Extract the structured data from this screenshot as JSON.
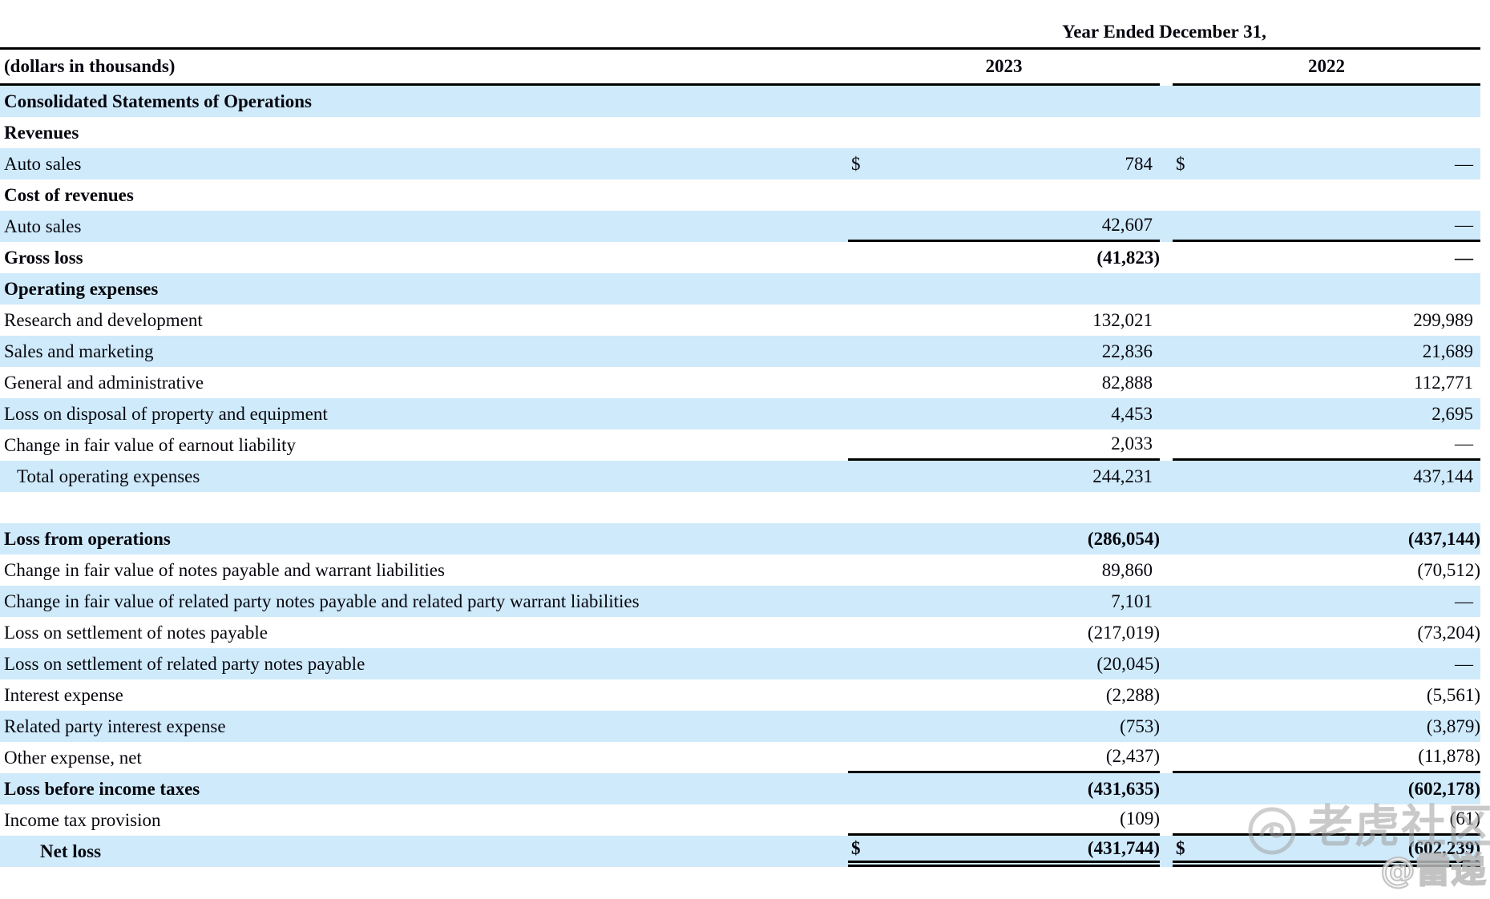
{
  "header": {
    "period_title": "Year Ended December 31,",
    "unit_label": "(dollars in thousands)",
    "columns": [
      "2023",
      "2022"
    ]
  },
  "table": {
    "rows": [
      {
        "label": "Consolidated Statements of Operations",
        "bold": true
      },
      {
        "label": "Revenues",
        "bold": true
      },
      {
        "label": "Auto sales",
        "v1": "784",
        "v2": "—",
        "d1": true,
        "d2": true
      },
      {
        "label": "Cost of revenues",
        "bold": true
      },
      {
        "label": "Auto sales",
        "v1": "42,607",
        "v2": "—",
        "rule": "single"
      },
      {
        "label": "Gross loss",
        "bold": true,
        "v1": "(41,823)",
        "v2": "—"
      },
      {
        "label": "Operating expenses",
        "bold": true
      },
      {
        "label": "Research and development",
        "v1": "132,021",
        "v2": "299,989"
      },
      {
        "label": "Sales and marketing",
        "v1": "22,836",
        "v2": "21,689"
      },
      {
        "label": "General and administrative",
        "v1": "82,888",
        "v2": "112,771"
      },
      {
        "label": "Loss on disposal of property and equipment",
        "v1": "4,453",
        "v2": "2,695"
      },
      {
        "label": "Change in fair value of earnout liability",
        "v1": "2,033",
        "v2": "—",
        "rule": "single"
      },
      {
        "label": "Total operating expenses",
        "indent": 1,
        "v1": "244,231",
        "v2": "437,144"
      },
      {
        "label": "",
        "gap": true
      },
      {
        "label": "Loss from operations",
        "bold": true,
        "v1": "(286,054)",
        "v2": "(437,144)"
      },
      {
        "label": "Change in fair value of notes payable and warrant liabilities",
        "v1": "89,860",
        "v2": "(70,512)"
      },
      {
        "label": "Change in fair value of related party notes payable and related party warrant liabilities",
        "v1": "7,101",
        "v2": "—"
      },
      {
        "label": "Loss on settlement of notes payable",
        "v1": "(217,019)",
        "v2": "(73,204)"
      },
      {
        "label": "Loss on settlement of related party notes payable",
        "v1": "(20,045)",
        "v2": "—"
      },
      {
        "label": "Interest expense",
        "v1": "(2,288)",
        "v2": "(5,561)"
      },
      {
        "label": "Related party interest expense",
        "v1": "(753)",
        "v2": "(3,879)"
      },
      {
        "label": "Other expense, net",
        "v1": "(2,437)",
        "v2": "(11,878)",
        "rule": "single"
      },
      {
        "label": "Loss before income taxes",
        "bold": true,
        "v1": "(431,635)",
        "v2": "(602,178)"
      },
      {
        "label": "Income tax provision",
        "v1": "(109)",
        "v2": "(61)",
        "rule": "single"
      },
      {
        "label": "Net loss",
        "bold": true,
        "indent": 2,
        "v1": "(431,744)",
        "v2": "(602,239)",
        "d1": true,
        "d2": true,
        "rule": "double"
      }
    ],
    "dollar_symbol": "$"
  },
  "watermark": {
    "icon": "tiger-circle-icon",
    "site_name": "老虎社区",
    "author_handle": "@雷递"
  },
  "colors": {
    "row_highlight": "#cfeafa",
    "rule": "#000000",
    "watermark_gray": "#9e9e9e"
  }
}
